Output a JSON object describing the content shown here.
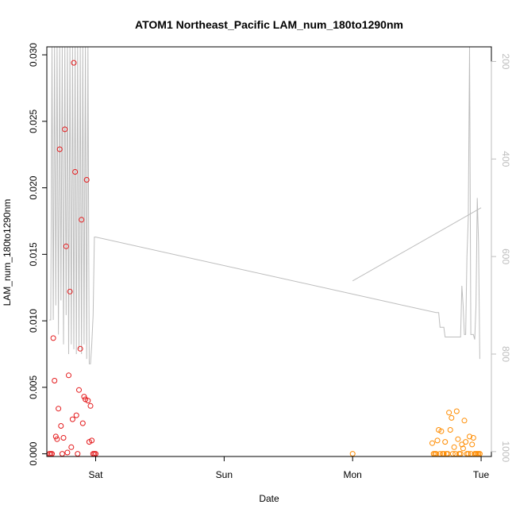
{
  "chart_data": {
    "type": "scatter",
    "title": "ATOM1 Northeast_Pacific LAM_num_180to1290nm",
    "xlabel": "Date",
    "ylabel": "LAM_num_180to1290nm",
    "x_axis": {
      "unit": "days",
      "range": [
        -0.38,
        3.08
      ],
      "ticks": [
        {
          "label": "Sat",
          "value": 0
        },
        {
          "label": "Sun",
          "value": 1
        },
        {
          "label": "Mon",
          "value": 2
        },
        {
          "label": "Tue",
          "value": 3
        }
      ]
    },
    "y_axis": {
      "range": [
        -0.0002,
        0.0306
      ],
      "ticks": [
        "0.000",
        "0.005",
        "0.010",
        "0.015",
        "0.020",
        "0.025",
        "0.030"
      ],
      "tick_values": [
        0,
        0.005,
        0.01,
        0.015,
        0.02,
        0.025,
        0.03
      ]
    },
    "y2_axis": {
      "range": [
        1010,
        170
      ],
      "reversed": true,
      "ticks": [
        "200",
        "400",
        "600",
        "800",
        "1000"
      ],
      "tick_values": [
        200,
        400,
        600,
        800,
        1000
      ],
      "color": "#bdbdbd"
    },
    "series": [
      {
        "color": "#e41a1c",
        "marker": "open-circle",
        "x": [
          -0.36,
          -0.35,
          -0.34,
          -0.33,
          -0.32,
          -0.31,
          -0.3,
          -0.29,
          -0.28,
          -0.27,
          -0.26,
          -0.25,
          -0.24,
          -0.23,
          -0.22,
          -0.21,
          -0.2,
          -0.19,
          -0.18,
          -0.17,
          -0.16,
          -0.15,
          -0.14,
          -0.13,
          -0.12,
          -0.11,
          -0.1,
          -0.09,
          -0.08,
          -0.07,
          -0.06,
          -0.05,
          -0.04,
          -0.03,
          -0.02,
          -0.01,
          0
        ],
        "y": [
          0,
          0,
          0,
          0.0087,
          0.0055,
          0.0013,
          0.0011,
          0.0034,
          0.0229,
          0.0021,
          0,
          0.0012,
          0.0244,
          0.0156,
          0.0001,
          0.0059,
          0.0122,
          0.0005,
          0.0026,
          0.0294,
          0.0212,
          0.0029,
          0,
          0.0048,
          0.0079,
          0.0176,
          0.0023,
          0.0043,
          0.0041,
          0.0206,
          0.004,
          0.0009,
          0.0036,
          0.001,
          0,
          0,
          0
        ]
      },
      {
        "color": "#ff8c00",
        "marker": "open-circle",
        "x": [
          2.0,
          2.62,
          2.63,
          2.64,
          2.65,
          2.66,
          2.67,
          2.68,
          2.69,
          2.7,
          2.71,
          2.72,
          2.73,
          2.74,
          2.75,
          2.76,
          2.77,
          2.78,
          2.79,
          2.8,
          2.81,
          2.82,
          2.83,
          2.84,
          2.85,
          2.86,
          2.87,
          2.88,
          2.89,
          2.9,
          2.91,
          2.92,
          2.93,
          2.94,
          2.95,
          2.96,
          2.97,
          2.98,
          2.99
        ],
        "y": [
          0,
          0.0008,
          0,
          0,
          0,
          0.001,
          0.0018,
          0,
          0.0017,
          0,
          0,
          0.0009,
          0,
          0,
          0.0031,
          0.0018,
          0.0027,
          0,
          0.0005,
          0,
          0.0032,
          0.0011,
          0,
          0,
          0.0007,
          0.0004,
          0.0025,
          0.0009,
          0,
          0,
          0.0013,
          0,
          0.0007,
          0.0012,
          0,
          0,
          0,
          0,
          0
        ]
      },
      {
        "color": "#bdbdbd",
        "marker": "line",
        "axis": "y2",
        "x": [
          -0.36,
          -0.35,
          -0.34,
          -0.33,
          -0.32,
          -0.31,
          -0.3,
          -0.29,
          -0.28,
          -0.27,
          -0.26,
          -0.25,
          -0.24,
          -0.23,
          -0.22,
          -0.21,
          -0.2,
          -0.19,
          -0.18,
          -0.17,
          -0.16,
          -0.15,
          -0.14,
          -0.13,
          -0.12,
          -0.11,
          -0.1,
          -0.09,
          -0.08,
          -0.07,
          -0.06,
          -0.05,
          -0.04,
          -0.03,
          -0.02,
          -0.01,
          0,
          2.65,
          2.66,
          2.67,
          2.68,
          2.69,
          2.7,
          2.71,
          2.72,
          2.73,
          2.74,
          2.75,
          2.76,
          2.77,
          2.78,
          2.79,
          2.8,
          2.81,
          2.82,
          2.83,
          2.84,
          2.85,
          2.86,
          2.87,
          2.88,
          2.89,
          2.9,
          2.91,
          2.92,
          2.93,
          2.94,
          2.95,
          2.96,
          2.97,
          2.98,
          2.99,
          2.0,
          3.0
        ],
        "y": [
          730,
          730,
          160,
          730,
          160,
          700,
          160,
          760,
          160,
          690,
          160,
          780,
          160,
          720,
          160,
          800,
          160,
          780,
          160,
          790,
          160,
          800,
          160,
          790,
          160,
          800,
          160,
          780,
          160,
          810,
          160,
          820,
          820,
          780,
          720,
          560,
          560,
          715,
          715,
          715,
          745,
          745,
          745,
          745,
          765,
          765,
          765,
          765,
          765,
          765,
          765,
          765,
          765,
          765,
          765,
          765,
          765,
          660,
          700,
          760,
          760,
          600,
          520,
          160,
          760,
          760,
          760,
          770,
          700,
          480,
          570,
          810,
          650,
          500
        ]
      }
    ],
    "grid": false
  }
}
